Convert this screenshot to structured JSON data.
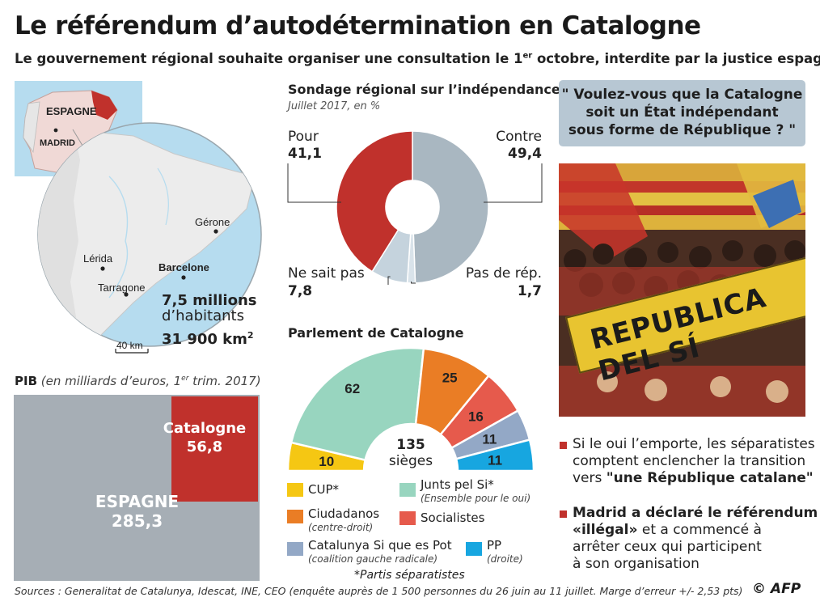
{
  "title": "Le référendum d’autodétermination en Catalogne",
  "subtitle_pre": "Le gouvernement régional souhaite organiser une consultation le 1",
  "subtitle_sup": "er",
  "subtitle_post": " octobre, interdite par la justice espagnole",
  "map": {
    "label_espagne": "ESPAGNE",
    "label_madrid": "MADRID",
    "cities": [
      "Gérone",
      "Lérida",
      "Barcelone",
      "Tarragone"
    ],
    "population_value": "7,5 millions",
    "population_unit": "d’habitants",
    "area_value": "31 900 km",
    "area_sup": "2",
    "scale": "40 km",
    "colors": {
      "catalonia": "#c0312c",
      "spain": "#f0d9d6",
      "sea": "#b6dcef",
      "land": "#ececec"
    }
  },
  "gdp": {
    "title_bold": "PIB",
    "title_italic_pre": " (en milliards d’euros, 1",
    "title_sup": "er",
    "title_italic_post": " trim. 2017)",
    "spain_label": "ESPAGNE",
    "catalonia_label": "Catalogne",
    "colors": {
      "spain": "#a6aeb5",
      "catalonia": "#c0312c"
    }
  },
  "poll": {
    "title": "Sondage régional sur l’indépendance",
    "subtitle": "Juillet 2017, en %",
    "labels": {
      "pour": "Pour",
      "contre": "Contre",
      "nsp": "Ne sait pas",
      "pdr": "Pas de rép."
    }
  },
  "parliament": {
    "title": "Parlement de Catalogne",
    "center_value": "135",
    "center_label": "sièges",
    "legend": [
      {
        "name": "CUP*",
        "sub": "",
        "color": "#f5c713"
      },
      {
        "name": "Junts pel Si*",
        "sub": "(Ensemble pour le oui)",
        "color": "#98d5bf"
      },
      {
        "name": "Ciudadanos",
        "sub": "(centre-droit)",
        "color": "#ea7d25"
      },
      {
        "name": "Socialistes",
        "sub": "",
        "color": "#e65a4c"
      },
      {
        "name": "Catalunya Si que es Pot",
        "sub": "(coalition gauche radicale)",
        "color": "#93a8c6"
      },
      {
        "name": "PP",
        "sub": "(droite)",
        "color": "#17a6e0"
      }
    ],
    "footnote": "*Partis séparatistes"
  },
  "question": [
    "\" Voulez-vous que la Catalogne",
    "soit un État indépendant",
    "sous forme de République ? \""
  ],
  "photo": {
    "banner_text": "REPUBLICA DEL SÍ"
  },
  "bullets": [
    {
      "line1": "Si le oui l’emporte, les séparatistes",
      "line2": "comptent enclencher la transition",
      "line3_pre": "vers ",
      "line3_bold": "\"une République catalane\""
    },
    {
      "line1_bold": "Madrid a déclaré le référendum",
      "line2_bold": "«illégal»",
      "line2_post": " et a commencé à",
      "line3": "arrêter ceux qui participent",
      "line4": "à son organisation"
    }
  ],
  "sources": "Sources : Generalitat de Catalunya, Idescat, INE, CEO (enquête auprès de 1 500 personnes du 26 juin au 11 juillet. Marge d’erreur +/- 2,53 pts)",
  "credit": "© AFP",
  "chart_data": [
    {
      "type": "pie",
      "title": "Sondage régional sur l’indépendance",
      "subtitle": "Juillet 2017, en %",
      "categories": [
        "Pour",
        "Contre",
        "Pas de rép.",
        "Ne sait pas"
      ],
      "values": [
        41.1,
        49.4,
        1.7,
        7.8
      ],
      "value_labels": [
        "41,1",
        "49,4",
        "1,7",
        "7,8"
      ],
      "colors": [
        "#c0312c",
        "#a9b7c1",
        "#d9e3ea",
        "#c5d3dd"
      ]
    },
    {
      "type": "pie",
      "subtype": "parliament-semicircle",
      "title": "Parlement de Catalogne",
      "categories": [
        "CUP",
        "Junts pel Si",
        "Ciudadanos",
        "Socialistes",
        "Catalunya Si que es Pot",
        "PP"
      ],
      "values": [
        10,
        62,
        25,
        16,
        11,
        11
      ],
      "total": 135,
      "colors": [
        "#f5c713",
        "#98d5bf",
        "#ea7d25",
        "#e65a4c",
        "#93a8c6",
        "#17a6e0"
      ]
    },
    {
      "type": "bar",
      "subtype": "nested-area",
      "title": "PIB",
      "categories": [
        "ESPAGNE",
        "Catalogne"
      ],
      "values": [
        285.3,
        56.8
      ],
      "value_labels": [
        "285,3",
        "56,8"
      ]
    }
  ]
}
